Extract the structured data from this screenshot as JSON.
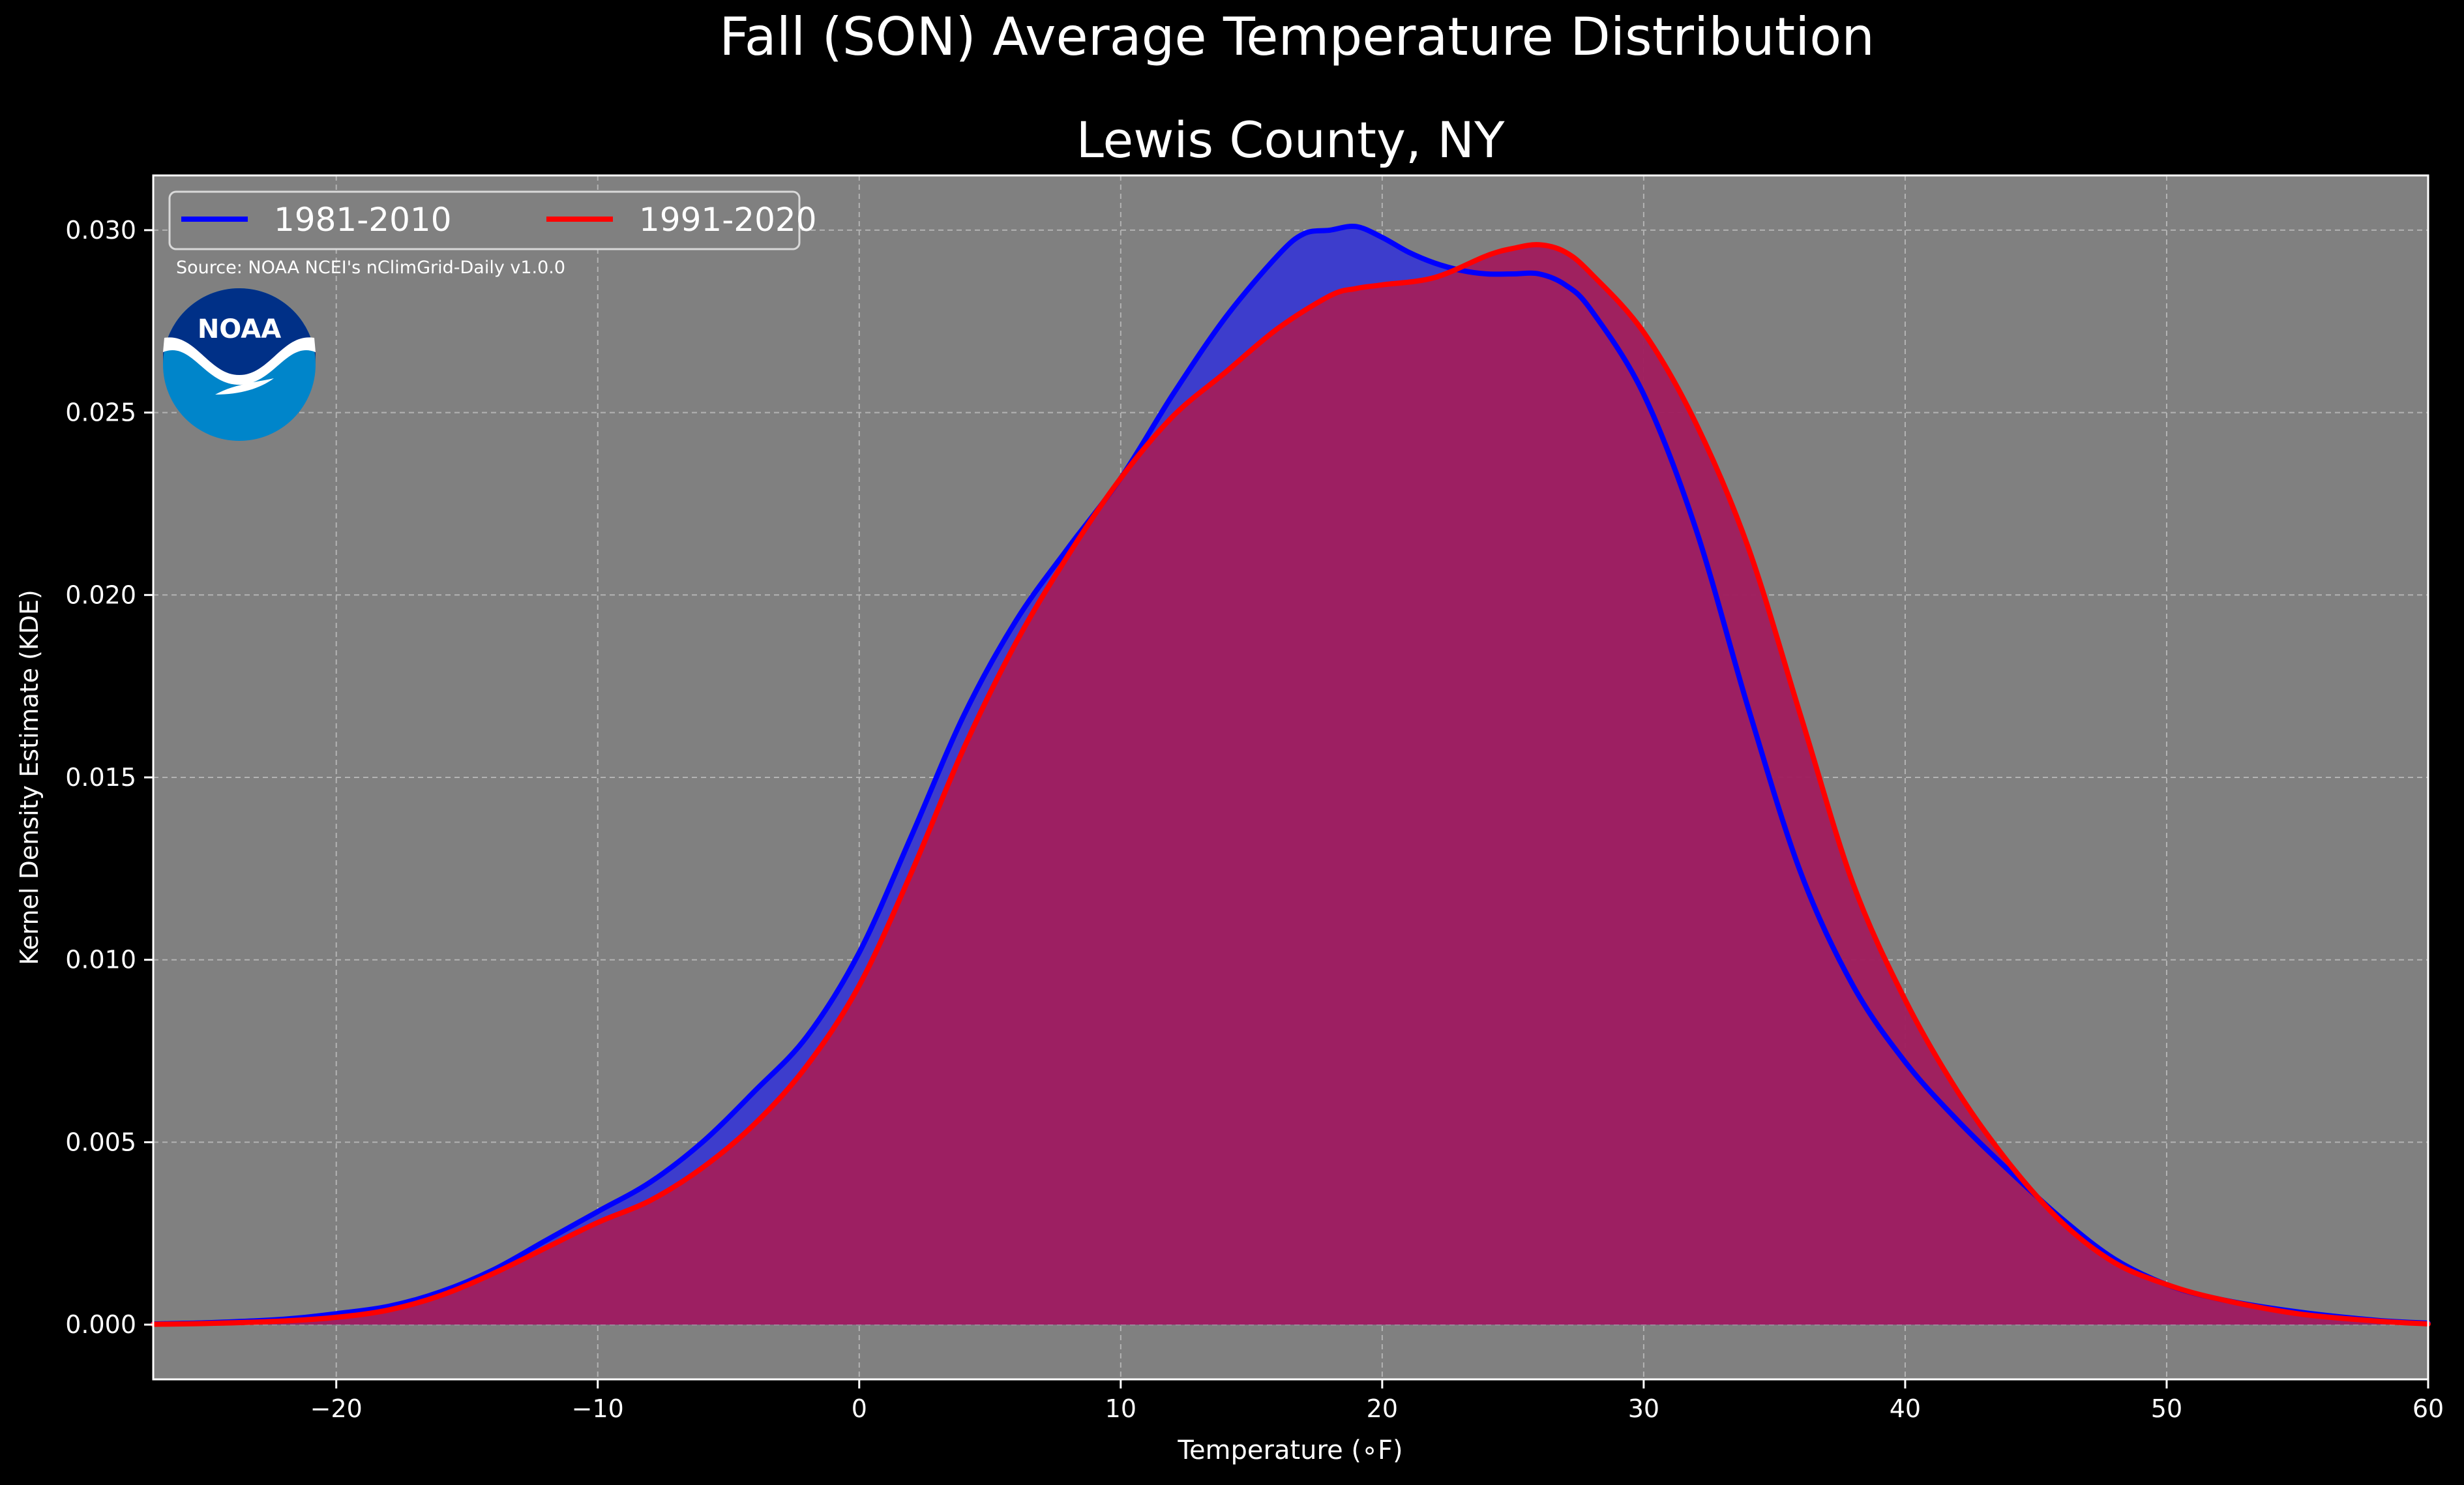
{
  "chart_data": {
    "type": "area",
    "title": "Fall (SON) Average Temperature Distribution",
    "subtitle": "Lewis County, NY",
    "xlabel": "Temperature (∘F)",
    "ylabel": "Kernel Density Estimate (KDE)",
    "xlim": [
      -27,
      60
    ],
    "ylim": [
      -0.0015,
      0.0315
    ],
    "x_ticks": [
      -20,
      -10,
      0,
      10,
      20,
      30,
      40,
      50,
      60
    ],
    "x_tick_labels": [
      "−20",
      "−10",
      "0",
      "10",
      "20",
      "30",
      "40",
      "50",
      "60"
    ],
    "y_ticks": [
      0,
      0.005,
      0.01,
      0.015,
      0.02,
      0.025,
      0.03
    ],
    "y_tick_labels": [
      "0.000",
      "0.005",
      "0.010",
      "0.015",
      "0.020",
      "0.025",
      "0.030"
    ],
    "grid": true,
    "legend_position": "top-left",
    "background": "#808080",
    "annotation": "Source: NOAA NCEI's nClimGrid-Daily v1.0.0",
    "logo_text": "NOAA",
    "series": [
      {
        "name": "1981-2010",
        "color": "#0000ff",
        "fill": "#3d3dcc",
        "x": [
          -27,
          -25,
          -22,
          -20,
          -18,
          -16,
          -14,
          -12,
          -10,
          -8,
          -6,
          -4,
          -2,
          0,
          2,
          4,
          6,
          8,
          10,
          12,
          14,
          16,
          17,
          18,
          19,
          20,
          21,
          22,
          23,
          24,
          25,
          26,
          27,
          28,
          30,
          32,
          34,
          36,
          38,
          40,
          42,
          44,
          46,
          48,
          50,
          52,
          55,
          58,
          60
        ],
        "y": [
          2e-05,
          5e-05,
          0.00015,
          0.0003,
          0.0005,
          0.0009,
          0.0015,
          0.0023,
          0.0031,
          0.0039,
          0.005,
          0.0064,
          0.0079,
          0.0102,
          0.0134,
          0.0167,
          0.0193,
          0.0213,
          0.0232,
          0.0255,
          0.0276,
          0.0293,
          0.0299,
          0.03,
          0.0301,
          0.0298,
          0.0294,
          0.0291,
          0.0289,
          0.0288,
          0.0288,
          0.0288,
          0.0285,
          0.0278,
          0.0255,
          0.0218,
          0.0169,
          0.0124,
          0.0093,
          0.0072,
          0.0056,
          0.0042,
          0.0029,
          0.0018,
          0.0011,
          0.0007,
          0.00035,
          0.00012,
          4e-05
        ]
      },
      {
        "name": "1991-2020",
        "color": "#ff0000",
        "fill": "#a01e5e",
        "x": [
          -27,
          -25,
          -22,
          -20,
          -18,
          -16,
          -14,
          -12,
          -10,
          -8,
          -6,
          -4,
          -2,
          0,
          2,
          4,
          6,
          8,
          10,
          12,
          14,
          16,
          18,
          19,
          20,
          22,
          24,
          25,
          26,
          27,
          28,
          30,
          32,
          34,
          36,
          38,
          40,
          42,
          44,
          46,
          48,
          50,
          52,
          55,
          58,
          60
        ],
        "y": [
          1e-05,
          3e-05,
          0.0001,
          0.0002,
          0.0004,
          0.0008,
          0.0014,
          0.0021,
          0.0028,
          0.0034,
          0.0043,
          0.0055,
          0.0071,
          0.0093,
          0.0124,
          0.0158,
          0.0187,
          0.0211,
          0.0232,
          0.0249,
          0.0261,
          0.0273,
          0.0282,
          0.0284,
          0.0285,
          0.0287,
          0.0293,
          0.0295,
          0.0296,
          0.0294,
          0.0288,
          0.0272,
          0.0247,
          0.0213,
          0.0167,
          0.0121,
          0.0089,
          0.0064,
          0.0044,
          0.0028,
          0.0017,
          0.0011,
          0.0007,
          0.0003,
          0.0001,
          2e-05
        ]
      }
    ]
  }
}
